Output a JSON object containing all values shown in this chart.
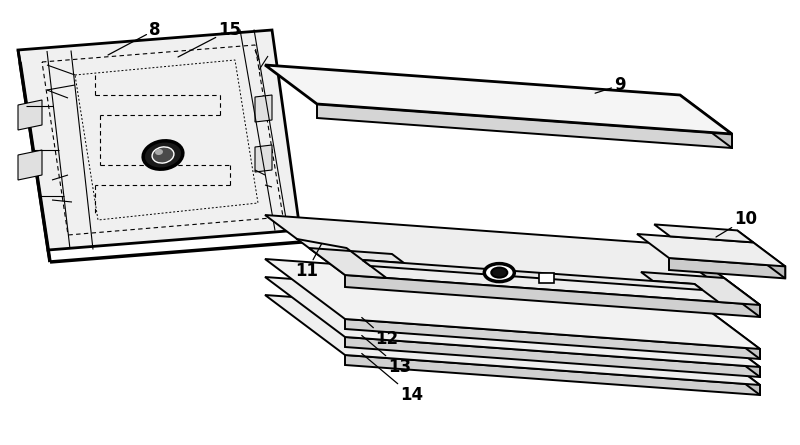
{
  "background_color": "#ffffff",
  "line_color": "#000000",
  "lw": 1.4,
  "lw_thick": 2.0,
  "lw_thin": 0.8,
  "fs": 12
}
